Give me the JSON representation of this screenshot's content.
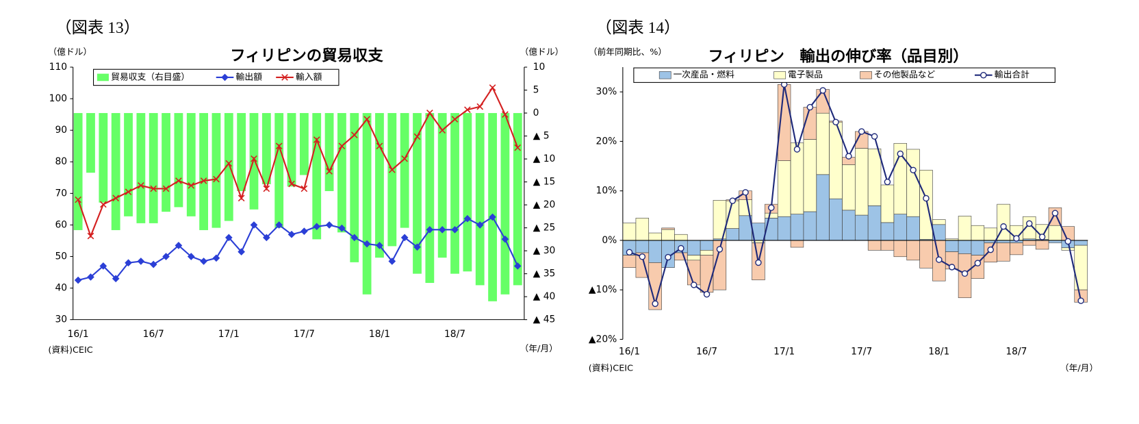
{
  "chart_data": [
    {
      "type": "combo",
      "figure_label": "（図表 13）",
      "title": "フィリピンの貿易収支",
      "y_unit": "（億ドル）",
      "y2_unit": "（億ドル）",
      "x_unit": "（年/月）",
      "source": "(資料)CEIC",
      "categories": [
        "16/1",
        null,
        null,
        null,
        null,
        null,
        "16/7",
        null,
        null,
        null,
        null,
        null,
        "17/1",
        null,
        null,
        null,
        null,
        null,
        "17/7",
        null,
        null,
        null,
        null,
        null,
        "18/1",
        null,
        null,
        null,
        null,
        null,
        "18/7",
        null,
        null,
        null,
        null,
        null
      ],
      "ylim": [
        30,
        110
      ],
      "yticks": [
        30,
        40,
        50,
        60,
        70,
        80,
        90,
        100,
        110
      ],
      "y2lim": [
        -45,
        10
      ],
      "y2ticks": [
        10,
        5,
        0,
        {
          "value": -5,
          "label": "▲ 5"
        },
        {
          "value": -10,
          "label": "▲ 10"
        },
        {
          "value": -15,
          "label": "▲ 15"
        },
        {
          "value": -20,
          "label": "▲ 20"
        },
        {
          "value": -25,
          "label": "▲ 25"
        },
        {
          "value": -30,
          "label": "▲ 30"
        },
        {
          "value": -35,
          "label": "▲ 35"
        },
        {
          "value": -40,
          "label": "▲ 40"
        },
        {
          "value": -45,
          "label": "▲ 45"
        }
      ],
      "grid": false,
      "series": [
        {
          "name": "貿易収支（右目盛）",
          "type": "bar",
          "axis": "y2",
          "color": "#66ff66",
          "values": [
            -25.5,
            -13,
            -19.5,
            -25.5,
            -22.5,
            -24,
            -24,
            -21.5,
            -20.5,
            -22.5,
            -25.5,
            -25,
            -23.5,
            -17,
            -21,
            -15.5,
            -25,
            -16,
            -13.5,
            -27.5,
            -17,
            -26,
            -32.5,
            -39.5,
            -31.5,
            -29,
            -25,
            -35,
            -37,
            -31.5,
            -35,
            -34.5,
            -37.5,
            -41,
            -39.5,
            -37.5
          ]
        },
        {
          "name": "輸出額",
          "type": "line",
          "marker": "diamond",
          "color": "#2b3fd6",
          "values": [
            42.5,
            43.5,
            47,
            43,
            48,
            48.5,
            47.5,
            50,
            53.5,
            50,
            48.5,
            49.5,
            56,
            51.5,
            60,
            56,
            60,
            57,
            58,
            59.5,
            60,
            59,
            56,
            54,
            53.5,
            48.5,
            56,
            53,
            58.5,
            58.5,
            58.5,
            62,
            60,
            62.5,
            55.5,
            47
          ]
        },
        {
          "name": "輸入額",
          "type": "line",
          "marker": "x",
          "color": "#d42020",
          "values": [
            68,
            56.5,
            66.5,
            68.5,
            70.5,
            72.5,
            71.5,
            71.5,
            74,
            72.5,
            74,
            74.5,
            79.5,
            68.5,
            81,
            71.5,
            85,
            73,
            71.5,
            87,
            77,
            85,
            88.5,
            93.5,
            85,
            77.5,
            81,
            88,
            95.5,
            90,
            93.5,
            96.5,
            97.5,
            103.5,
            95,
            84.5
          ]
        }
      ]
    },
    {
      "type": "bar",
      "figure_label": "（図表 14）",
      "title": "フィリピン　輸出の伸び率（品目別）",
      "y_unit": "（前年同期比、%）",
      "x_unit": "（年/月）",
      "source": "(資料)CEIC",
      "categories": [
        "16/1",
        null,
        null,
        null,
        null,
        null,
        "16/7",
        null,
        null,
        null,
        null,
        null,
        "17/1",
        null,
        null,
        null,
        null,
        null,
        "17/7",
        null,
        null,
        null,
        null,
        null,
        "18/1",
        null,
        null,
        null,
        null,
        null,
        "18/7",
        null,
        null,
        null,
        null,
        null
      ],
      "ylim": [
        -20,
        35
      ],
      "yticks": [
        {
          "value": -20,
          "label": "▲20%"
        },
        {
          "value": -10,
          "label": "▲10%"
        },
        {
          "value": 0,
          "label": "0%"
        },
        {
          "value": 10,
          "label": "10%"
        },
        {
          "value": 20,
          "label": "20%"
        },
        {
          "value": 30,
          "label": "30%"
        }
      ],
      "grid": false,
      "stacked": true,
      "series": [
        {
          "name": "一次産品・燃料",
          "type": "bar",
          "color": "#9dc3e6",
          "values": [
            -3,
            -2.5,
            -4.5,
            -5.5,
            -2.5,
            -3,
            -2,
            0.3,
            2.4,
            5,
            3.5,
            4.5,
            4.8,
            5.3,
            5.8,
            13.3,
            8.4,
            6.1,
            5.1,
            7,
            3.6,
            5.3,
            4.8,
            0.2,
            3.2,
            -2.3,
            -2.7,
            -3,
            -0.5,
            -0.5,
            -0.5,
            0.3,
            0.2,
            -0.5,
            -1.5,
            -1
          ]
        },
        {
          "name": "電子製品",
          "type": "bar",
          "color": "#ffffcc",
          "values": [
            3.5,
            4.5,
            1.5,
            2.2,
            1.2,
            -1,
            -1,
            7.8,
            5.6,
            3.2,
            -0.5,
            1,
            11.3,
            14.4,
            14.6,
            12.4,
            15.5,
            9.2,
            13.5,
            11.5,
            7.6,
            14.3,
            13.6,
            14,
            1,
            0.3,
            4.9,
            3,
            2.5,
            7.3,
            3,
            4.5,
            3,
            3,
            -0.5,
            -9
          ]
        },
        {
          "name": "その他製品など",
          "type": "bar",
          "color": "#f8cbad",
          "values": [
            -2.5,
            -5,
            -9.5,
            0.3,
            -1.5,
            -5,
            -7.5,
            -10,
            0.2,
            1.8,
            -7.5,
            1.8,
            15.4,
            -1.4,
            6.5,
            4.8,
            0.2,
            1.5,
            3.4,
            -2,
            -2,
            -3.3,
            -4,
            -5.6,
            -8.2,
            -3.5,
            -8.9,
            -4.7,
            -3.9,
            -3.7,
            -2.4,
            -1,
            -1.8,
            3.6,
            2.8,
            -2.5
          ]
        },
        {
          "name": "輸出合計",
          "type": "line",
          "marker": "circle",
          "color": "#1f2a7a",
          "values": [
            -2.4,
            -3.3,
            -12.8,
            -3.4,
            -1.6,
            -9,
            -10.9,
            -1.8,
            8,
            9.7,
            -4.5,
            6.6,
            31.5,
            18.4,
            26.9,
            30.3,
            23.9,
            17,
            22,
            21,
            11.8,
            17.5,
            14.2,
            8.5,
            -3.9,
            -5.4,
            -6.7,
            -4.6,
            -1.9,
            2.8,
            0.4,
            3.4,
            0.7,
            5.5,
            -0.2,
            -12.2
          ]
        }
      ]
    }
  ]
}
